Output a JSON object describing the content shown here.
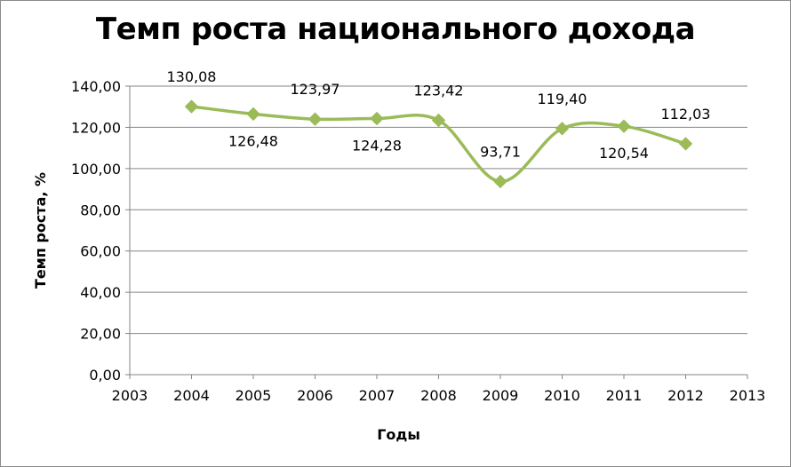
{
  "chart_data": {
    "type": "line",
    "title": "Темп роста национального дохода",
    "xlabel": "Годы",
    "ylabel": "Темп роста, %",
    "x": [
      2004,
      2005,
      2006,
      2007,
      2008,
      2009,
      2010,
      2011,
      2012
    ],
    "series": [
      {
        "values": [
          130.08,
          126.48,
          123.97,
          124.28,
          123.42,
          93.71,
          119.4,
          120.54,
          112.03
        ],
        "data_labels": [
          "130,08",
          "126,48",
          "123,97",
          "124,28",
          "123,42",
          "93,71",
          "119,40",
          "120,54",
          "112,03"
        ],
        "color": "#9bbb59",
        "smooth": true,
        "marker": "diamond"
      }
    ],
    "xlim": [
      2003,
      2013
    ],
    "ylim": [
      0,
      140
    ],
    "x_ticks": [
      "2003",
      "2004",
      "2005",
      "2006",
      "2007",
      "2008",
      "2009",
      "2010",
      "2011",
      "2012",
      "2013"
    ],
    "y_ticks": [
      "0,00",
      "20,00",
      "40,00",
      "60,00",
      "80,00",
      "100,00",
      "120,00",
      "140,00"
    ],
    "grid": "horizontal",
    "legend": "none"
  },
  "colors": {
    "line": "#9bbb59",
    "marker": "#9bbb59",
    "grid": "#868686",
    "axis": "#868686"
  }
}
